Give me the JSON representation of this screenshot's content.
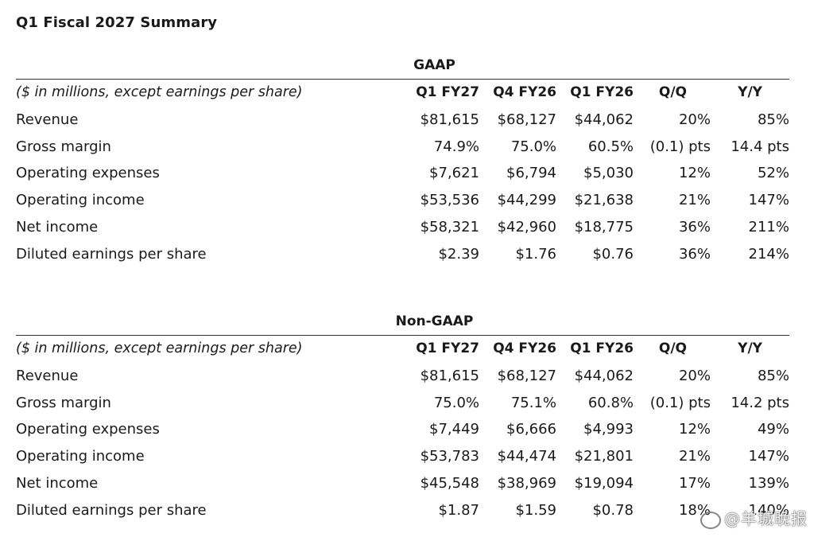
{
  "page_title": "Q1 Fiscal 2027 Summary",
  "gaap": {
    "title": "GAAP",
    "header": [
      "($ in millions, except earnings per share)",
      "Q1 FY27",
      "Q4 FY26",
      "Q1 FY26",
      "Q/Q",
      "Y/Y"
    ],
    "rows": [
      [
        "Revenue",
        "$81,615",
        "$68,127",
        "$44,062",
        "20%",
        "85%"
      ],
      [
        "Gross margin",
        "74.9%",
        "75.0%",
        "60.5%",
        "(0.1) pts",
        "14.4 pts"
      ],
      [
        "Operating expenses",
        "$7,621",
        "$6,794",
        "$5,030",
        "12%",
        "52%"
      ],
      [
        "Operating income",
        "$53,536",
        "$44,299",
        "$21,638",
        "21%",
        "147%"
      ],
      [
        "Net income",
        "$58,321",
        "$42,960",
        "$18,775",
        "36%",
        "211%"
      ],
      [
        "Diluted earnings per share",
        "$2.39",
        "$1.76",
        "$0.76",
        "36%",
        "214%"
      ]
    ]
  },
  "non_gaap": {
    "title": "Non-GAAP",
    "header": [
      "($ in millions, except earnings per share)",
      "Q1 FY27",
      "Q4 FY26",
      "Q1 FY26",
      "Q/Q",
      "Y/Y"
    ],
    "rows": [
      [
        "Revenue",
        "$81,615",
        "$68,127",
        "$44,062",
        "20%",
        "85%"
      ],
      [
        "Gross margin",
        "75.0%",
        "75.1%",
        "60.8%",
        "(0.1) pts",
        "14.2 pts"
      ],
      [
        "Operating expenses",
        "$7,449",
        "$6,666",
        "$4,993",
        "12%",
        "49%"
      ],
      [
        "Operating income",
        "$53,783",
        "$44,474",
        "$21,801",
        "21%",
        "147%"
      ],
      [
        "Net income",
        "$45,548",
        "$38,969",
        "$19,094",
        "17%",
        "139%"
      ],
      [
        "Diluted earnings per share",
        "$1.87",
        "$1.59",
        "$0.78",
        "18%",
        "140%"
      ]
    ]
  },
  "watermark": {
    "icon": "weibo-icon",
    "text": "@羊城晚报"
  }
}
